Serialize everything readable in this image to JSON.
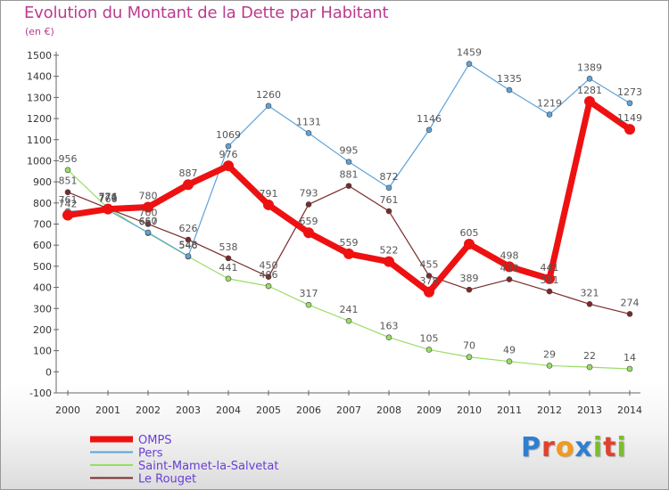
{
  "title": "Evolution du Montant de la Dette par Habitant",
  "unit": "(en €)",
  "brand": {
    "text": "Proxiti",
    "letter_colors": [
      "#2f7fd0",
      "#e0422e",
      "#f29a1b",
      "#2f7fd0",
      "#7cbd2f",
      "#e0422e",
      "#7cbd2f"
    ]
  },
  "chart_data": {
    "type": "line",
    "x": [
      "2000",
      "2001",
      "2002",
      "2003",
      "2004",
      "2005",
      "2006",
      "2007",
      "2008",
      "2009",
      "2010",
      "2011",
      "2012",
      "2013",
      "2014"
    ],
    "ylim": [
      -100,
      1500
    ],
    "yticks": [
      "-100",
      "0",
      "100",
      "200",
      "300",
      "400",
      "500",
      "600",
      "700",
      "800",
      "900",
      "1000",
      "1100",
      "1200",
      "1300",
      "1400",
      "1500"
    ],
    "grid": false,
    "legend_position": "bottom-left",
    "series": [
      {
        "name": "OMPS",
        "color": "#ee1111",
        "values": [
          742,
          771,
          780,
          887,
          976,
          791,
          659,
          559,
          522,
          378,
          605,
          498,
          441,
          1281,
          1149
        ],
        "labels": [
          "742",
          "771",
          "780",
          "887",
          "976",
          "791",
          "659",
          "559",
          "522",
          "378",
          "605",
          "498",
          "441",
          "1281",
          "1149"
        ]
      },
      {
        "name": "Pers",
        "color": "#5ea2d8",
        "values": [
          761,
          766,
          660,
          548,
          1069,
          1260,
          1131,
          995,
          872,
          1146,
          1459,
          1335,
          1219,
          1389,
          1273
        ],
        "labels": [
          "761",
          "766",
          "660",
          "548",
          "1069",
          "1260",
          "1131",
          "995",
          "872",
          "1146",
          "1459",
          "1335",
          "1219",
          "1389",
          "1273"
        ]
      },
      {
        "name": "Saint-Mamet-la-Salvetat",
        "color": "#99dd66",
        "values": [
          956,
          776,
          657,
          546,
          441,
          406,
          317,
          241,
          163,
          105,
          70,
          49,
          29,
          22,
          14
        ],
        "labels": [
          "956",
          "776",
          "657",
          "546",
          "441",
          "406",
          "317",
          "241",
          "163",
          "105",
          "70",
          "49",
          "29",
          "22",
          "14"
        ]
      },
      {
        "name": "Le Rouget",
        "color": "#7a2a2a",
        "values": [
          851,
          774,
          700,
          626,
          538,
          450,
          793,
          881,
          761,
          455,
          389,
          438,
          381,
          321,
          274
        ],
        "labels": [
          "851",
          "774",
          "700",
          "626",
          "538",
          "450",
          "793",
          "881",
          "761",
          "455",
          "389",
          "438",
          "381",
          "321",
          "274"
        ]
      }
    ]
  }
}
